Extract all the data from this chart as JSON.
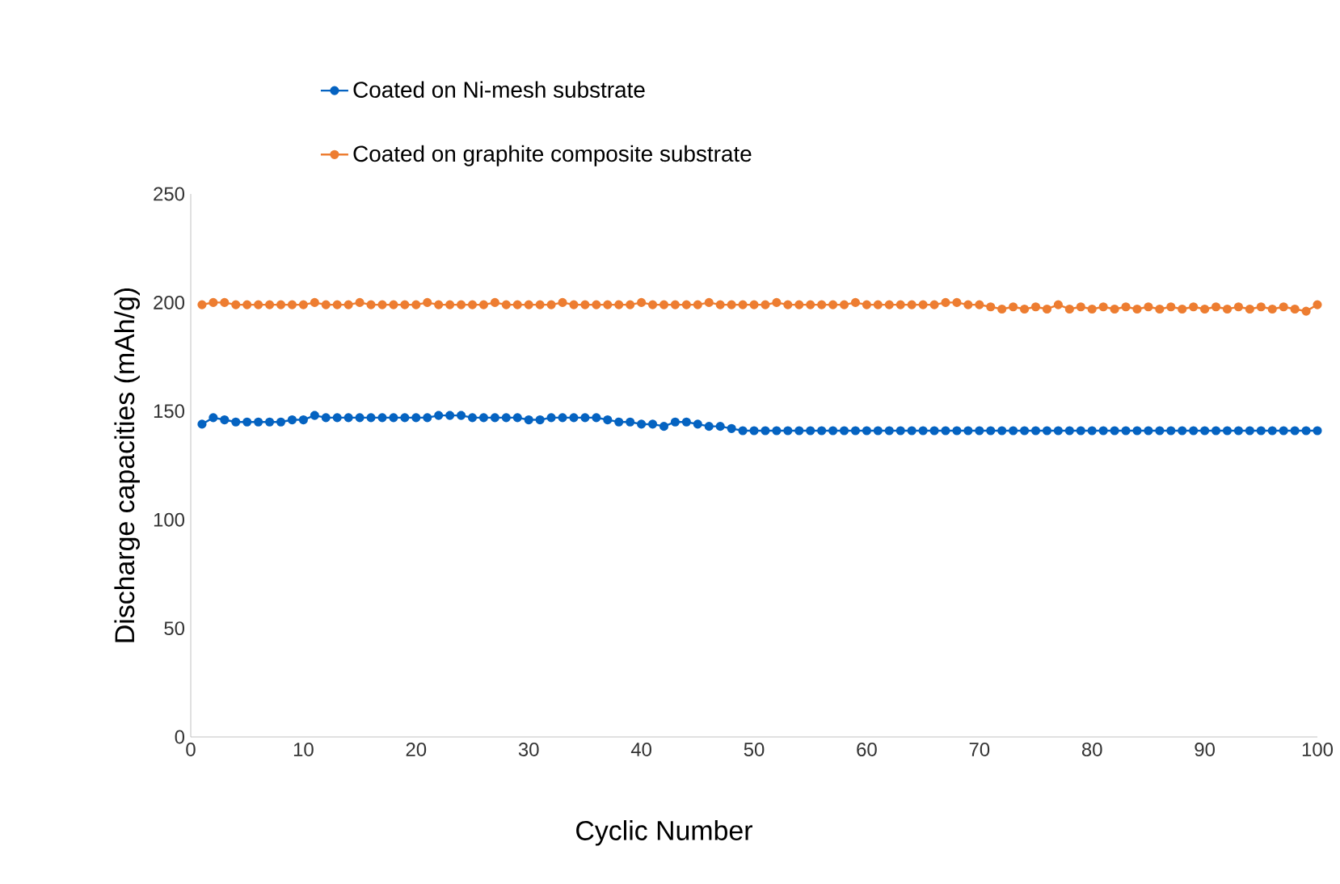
{
  "chart_data": {
    "type": "line",
    "xlabel": "Cyclic Number",
    "ylabel": "Discharge capacities (mAh/g)",
    "x": [
      1,
      2,
      3,
      4,
      5,
      6,
      7,
      8,
      9,
      10,
      11,
      12,
      13,
      14,
      15,
      16,
      17,
      18,
      19,
      20,
      21,
      22,
      23,
      24,
      25,
      26,
      27,
      28,
      29,
      30,
      31,
      32,
      33,
      34,
      35,
      36,
      37,
      38,
      39,
      40,
      41,
      42,
      43,
      44,
      45,
      46,
      47,
      48,
      49,
      50,
      51,
      52,
      53,
      54,
      55,
      56,
      57,
      58,
      59,
      60,
      61,
      62,
      63,
      64,
      65,
      66,
      67,
      68,
      69,
      70,
      71,
      72,
      73,
      74,
      75,
      76,
      77,
      78,
      79,
      80,
      81,
      82,
      83,
      84,
      85,
      86,
      87,
      88,
      89,
      90,
      91,
      92,
      93,
      94,
      95,
      96,
      97,
      98,
      99,
      100
    ],
    "series": [
      {
        "name": "Coated on Ni-mesh substrate",
        "color": "#0563c1",
        "values": [
          144,
          147,
          146,
          145,
          145,
          145,
          145,
          145,
          146,
          146,
          148,
          147,
          147,
          147,
          147,
          147,
          147,
          147,
          147,
          147,
          147,
          148,
          148,
          148,
          147,
          147,
          147,
          147,
          147,
          146,
          146,
          147,
          147,
          147,
          147,
          147,
          146,
          145,
          145,
          144,
          144,
          143,
          145,
          145,
          144,
          143,
          143,
          142,
          141,
          141,
          141,
          141,
          141,
          141,
          141,
          141,
          141,
          141,
          141,
          141,
          141,
          141,
          141,
          141,
          141,
          141,
          141,
          141,
          141,
          141,
          141,
          141,
          141,
          141,
          141,
          141,
          141,
          141,
          141,
          141,
          141,
          141,
          141,
          141,
          141,
          141,
          141,
          141,
          141,
          141,
          141,
          141,
          141,
          141,
          141,
          141,
          141,
          141,
          141,
          141
        ]
      },
      {
        "name": "Coated on graphite composite substrate",
        "color": "#ed7d31",
        "values": [
          199,
          200,
          200,
          199,
          199,
          199,
          199,
          199,
          199,
          199,
          200,
          199,
          199,
          199,
          200,
          199,
          199,
          199,
          199,
          199,
          200,
          199,
          199,
          199,
          199,
          199,
          200,
          199,
          199,
          199,
          199,
          199,
          200,
          199,
          199,
          199,
          199,
          199,
          199,
          200,
          199,
          199,
          199,
          199,
          199,
          200,
          199,
          199,
          199,
          199,
          199,
          200,
          199,
          199,
          199,
          199,
          199,
          199,
          200,
          199,
          199,
          199,
          199,
          199,
          199,
          199,
          200,
          200,
          199,
          199,
          198,
          197,
          198,
          197,
          198,
          197,
          199,
          197,
          198,
          197,
          198,
          197,
          198,
          197,
          198,
          197,
          198,
          197,
          198,
          197,
          198,
          197,
          198,
          197,
          198,
          197,
          198,
          197,
          196,
          199
        ]
      }
    ],
    "xlim": [
      0,
      100
    ],
    "xticks": [
      0,
      10,
      20,
      30,
      40,
      50,
      60,
      70,
      80,
      90,
      100
    ],
    "ylim": [
      0,
      250
    ],
    "yticks": [
      0,
      50,
      100,
      150,
      200,
      250
    ],
    "marker": "circle",
    "legend": "top",
    "grid": false
  }
}
